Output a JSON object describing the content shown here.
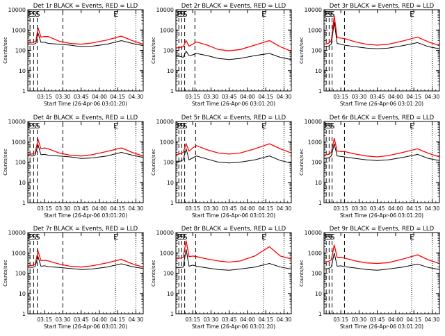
{
  "figure": {
    "xlabel_template": "Start Time (26-Apr-06 03:01:20)",
    "title_suffix": "BLACK = Events, RED = LLD",
    "ylabel": "Counts/sec"
  },
  "colors": {
    "events": "#000000",
    "lld": "#ff0000",
    "axes": "#000000",
    "background": "#ffffff"
  },
  "chart_data": [
    {
      "type": "line",
      "title": "Det 1r BLACK = Events, RED = LLD",
      "detector": "Det 1r",
      "xlabel": "Start Time (26-Apr-06 03:01:20)",
      "ylabel": "Counts/sec",
      "xlim": [
        3.02,
        4.6
      ],
      "ylim": [
        1,
        10000
      ],
      "yscale": "log",
      "xticks": [
        "03:15",
        "03:30",
        "03:45",
        "04:00",
        "04:15",
        "04:30"
      ],
      "yticks": [
        "1",
        "10",
        "100",
        "1000",
        "10000"
      ],
      "markers": [
        "E",
        "S",
        "S",
        "E"
      ],
      "series": [
        {
          "name": "LLD",
          "color": "red",
          "x": [
            3.02,
            3.08,
            3.1,
            3.13,
            3.16,
            3.2,
            3.25,
            3.3,
            3.45,
            3.6,
            3.75,
            3.9,
            4.1,
            4.3,
            4.45,
            4.6
          ],
          "values": [
            240,
            250,
            260,
            280,
            1300,
            450,
            480,
            480,
            280,
            220,
            200,
            230,
            320,
            500,
            300,
            200
          ]
        },
        {
          "name": "Events",
          "color": "black",
          "x": [
            3.02,
            3.08,
            3.1,
            3.13,
            3.16,
            3.2,
            3.25,
            3.3,
            3.45,
            3.6,
            3.75,
            3.9,
            4.1,
            4.3,
            4.45,
            4.6
          ],
          "values": [
            210,
            205,
            200,
            220,
            700,
            250,
            250,
            220,
            200,
            180,
            150,
            160,
            200,
            300,
            220,
            170
          ]
        }
      ],
      "dashed_lines_x": [
        3.05,
        3.1,
        3.15,
        3.5
      ],
      "dotted_lines_x": [
        4.22,
        4.5
      ]
    },
    {
      "type": "line",
      "title": "Det 2r BLACK = Events, RED = LLD",
      "detector": "Det 2r",
      "xlabel": "Start Time (26-Apr-06 03:01:20)",
      "ylabel": "Counts/sec",
      "xlim": [
        3.02,
        4.6
      ],
      "ylim": [
        1,
        10000
      ],
      "yscale": "log",
      "xticks": [
        "03:15",
        "03:30",
        "03:45",
        "04:00",
        "04:15",
        "04:30"
      ],
      "yticks": [
        "1",
        "10",
        "100",
        "1000",
        "10000"
      ],
      "markers": [
        "E",
        "S",
        "S",
        "E"
      ],
      "series": [
        {
          "name": "LLD",
          "color": "red",
          "x": [
            3.02,
            3.08,
            3.12,
            3.16,
            3.2,
            3.25,
            3.3,
            3.45,
            3.6,
            3.75,
            3.9,
            4.1,
            4.3,
            4.45,
            4.6
          ],
          "values": [
            130,
            140,
            150,
            300,
            160,
            200,
            260,
            180,
            110,
            95,
            110,
            180,
            300,
            150,
            90
          ]
        },
        {
          "name": "Events",
          "color": "black",
          "x": [
            3.02,
            3.08,
            3.12,
            3.16,
            3.2,
            3.25,
            3.3,
            3.45,
            3.6,
            3.75,
            3.9,
            4.1,
            4.3,
            4.45,
            4.6
          ],
          "values": [
            55,
            50,
            45,
            90,
            55,
            60,
            70,
            55,
            40,
            35,
            40,
            55,
            70,
            45,
            35
          ]
        }
      ],
      "dashed_lines_x": [
        3.06,
        3.1,
        3.14,
        3.28
      ],
      "dotted_lines_x": [
        4.22,
        4.5
      ]
    },
    {
      "type": "line",
      "title": "Det 3r BLACK = Events, RED = LLD",
      "detector": "Det 3r",
      "xlabel": "Start Time (26-Apr-06 03:01:20)",
      "ylabel": "Counts/sec",
      "xlim": [
        3.02,
        4.6
      ],
      "ylim": [
        1,
        10000
      ],
      "yscale": "log",
      "xticks": [
        "03:15",
        "03:30",
        "03:45",
        "04:00",
        "04:15",
        "04:30"
      ],
      "yticks": [
        "1",
        "10",
        "100",
        "1000",
        "10000"
      ],
      "markers": [
        "E",
        "S",
        "S",
        "E"
      ],
      "series": [
        {
          "name": "LLD",
          "color": "red",
          "x": [
            3.02,
            3.08,
            3.12,
            3.16,
            3.2,
            3.25,
            3.3,
            3.45,
            3.6,
            3.75,
            3.9,
            4.1,
            4.3,
            4.45,
            4.6
          ],
          "values": [
            200,
            220,
            300,
            5000,
            420,
            400,
            380,
            260,
            200,
            180,
            200,
            290,
            450,
            260,
            170
          ]
        },
        {
          "name": "Events",
          "color": "black",
          "x": [
            3.02,
            3.08,
            3.12,
            3.16,
            3.2,
            3.25,
            3.3,
            3.45,
            3.6,
            3.75,
            3.9,
            4.1,
            4.3,
            4.45,
            4.6
          ],
          "values": [
            150,
            160,
            200,
            2500,
            220,
            200,
            180,
            150,
            130,
            120,
            130,
            170,
            240,
            150,
            120
          ]
        }
      ],
      "dashed_lines_x": [
        3.05,
        3.09,
        3.13,
        3.3
      ],
      "dotted_lines_x": [
        4.22,
        4.5
      ]
    },
    {
      "type": "line",
      "title": "Det 4r BLACK = Events, RED = LLD",
      "detector": "Det 4r",
      "xlabel": "Start Time (26-Apr-06 03:01:20)",
      "ylabel": "Counts/sec",
      "xlim": [
        3.02,
        4.6
      ],
      "ylim": [
        1,
        10000
      ],
      "yscale": "log",
      "xticks": [
        "03:15",
        "03:30",
        "03:45",
        "04:00",
        "04:15",
        "04:30"
      ],
      "yticks": [
        "1",
        "10",
        "100",
        "1000",
        "10000"
      ],
      "markers": [
        "E",
        "S",
        "S",
        "E"
      ],
      "series": [
        {
          "name": "LLD",
          "color": "red",
          "x": [
            3.02,
            3.08,
            3.12,
            3.16,
            3.2,
            3.25,
            3.3,
            3.45,
            3.6,
            3.75,
            3.9,
            4.1,
            4.3,
            4.45,
            4.6
          ],
          "values": [
            240,
            250,
            280,
            1300,
            450,
            500,
            450,
            280,
            220,
            200,
            230,
            330,
            500,
            300,
            200
          ]
        },
        {
          "name": "Events",
          "color": "black",
          "x": [
            3.02,
            3.08,
            3.12,
            3.16,
            3.2,
            3.25,
            3.3,
            3.45,
            3.6,
            3.75,
            3.9,
            4.1,
            4.3,
            4.45,
            4.6
          ],
          "values": [
            210,
            200,
            220,
            700,
            230,
            240,
            220,
            200,
            180,
            150,
            160,
            200,
            300,
            220,
            170
          ]
        }
      ],
      "dashed_lines_x": [
        3.05,
        3.1,
        3.15,
        3.5
      ],
      "dotted_lines_x": [
        4.22,
        4.5
      ]
    },
    {
      "type": "line",
      "title": "Det 5r BLACK = Events, RED = LLD",
      "detector": "Det 5r",
      "xlabel": "Start Time (26-Apr-06 03:01:20)",
      "ylabel": "Counts/sec",
      "xlim": [
        3.02,
        4.6
      ],
      "ylim": [
        1,
        10000
      ],
      "yscale": "log",
      "xticks": [
        "03:15",
        "03:30",
        "03:45",
        "04:00",
        "04:15",
        "04:30"
      ],
      "yticks": [
        "1",
        "10",
        "100",
        "1000",
        "10000"
      ],
      "markers": [
        "E",
        "S",
        "S",
        "E"
      ],
      "series": [
        {
          "name": "LLD",
          "color": "red",
          "x": [
            3.02,
            3.08,
            3.12,
            3.16,
            3.2,
            3.25,
            3.3,
            3.45,
            3.6,
            3.75,
            3.9,
            4.1,
            4.3,
            4.45,
            4.6
          ],
          "values": [
            230,
            260,
            300,
            800,
            350,
            500,
            650,
            400,
            280,
            250,
            280,
            450,
            800,
            450,
            280
          ]
        },
        {
          "name": "Events",
          "color": "black",
          "x": [
            3.02,
            3.08,
            3.12,
            3.16,
            3.2,
            3.25,
            3.3,
            3.45,
            3.6,
            3.75,
            3.9,
            4.1,
            4.3,
            4.45,
            4.6
          ],
          "values": [
            110,
            110,
            130,
            450,
            130,
            160,
            200,
            140,
            100,
            90,
            100,
            130,
            200,
            120,
            90
          ]
        }
      ],
      "dashed_lines_x": [
        3.06,
        3.1,
        3.14,
        3.29
      ],
      "dotted_lines_x": [
        4.22,
        4.5
      ]
    },
    {
      "type": "line",
      "title": "Det 6r BLACK = Events, RED = LLD",
      "detector": "Det 6r",
      "xlabel": "Start Time (26-Apr-06 03:01:20)",
      "ylabel": "Counts/sec",
      "xlim": [
        3.02,
        4.6
      ],
      "ylim": [
        1,
        10000
      ],
      "yscale": "log",
      "xticks": [
        "03:15",
        "03:30",
        "03:45",
        "04:00",
        "04:15",
        "04:30"
      ],
      "yticks": [
        "1",
        "10",
        "100",
        "1000",
        "10000"
      ],
      "markers": [
        "E",
        "S",
        "S",
        "E"
      ],
      "series": [
        {
          "name": "LLD",
          "color": "red",
          "x": [
            3.02,
            3.08,
            3.12,
            3.16,
            3.2,
            3.25,
            3.3,
            3.45,
            3.6,
            3.75,
            3.9,
            4.1,
            4.3,
            4.45,
            4.6
          ],
          "values": [
            220,
            240,
            300,
            1500,
            350,
            330,
            330,
            250,
            200,
            180,
            210,
            300,
            450,
            270,
            180
          ]
        },
        {
          "name": "Events",
          "color": "black",
          "x": [
            3.02,
            3.08,
            3.12,
            3.16,
            3.2,
            3.25,
            3.3,
            3.45,
            3.6,
            3.75,
            3.9,
            4.1,
            4.3,
            4.45,
            4.6
          ],
          "values": [
            150,
            160,
            200,
            800,
            200,
            190,
            180,
            150,
            130,
            120,
            130,
            170,
            240,
            150,
            120
          ]
        }
      ],
      "dashed_lines_x": [
        3.05,
        3.09,
        3.13,
        3.3
      ],
      "dotted_lines_x": [
        4.22,
        4.5
      ]
    },
    {
      "type": "line",
      "title": "Det 7r BLACK = Events, RED = LLD",
      "detector": "Det 7r",
      "xlabel": "Start Time (26-Apr-06 03:01:20)",
      "ylabel": "Counts/sec",
      "xlim": [
        3.02,
        4.6
      ],
      "ylim": [
        1,
        10000
      ],
      "yscale": "log",
      "xticks": [
        "03:15",
        "03:30",
        "03:45",
        "04:00",
        "04:15",
        "04:30"
      ],
      "yticks": [
        "1",
        "10",
        "100",
        "1000",
        "10000"
      ],
      "markers": [
        "E",
        "S",
        "S",
        "E"
      ],
      "series": [
        {
          "name": "LLD",
          "color": "red",
          "x": [
            3.02,
            3.08,
            3.12,
            3.16,
            3.2,
            3.25,
            3.3,
            3.45,
            3.6,
            3.75,
            3.9,
            4.1,
            4.3,
            4.45,
            4.6
          ],
          "values": [
            230,
            240,
            280,
            1200,
            420,
            430,
            400,
            280,
            220,
            200,
            230,
            320,
            480,
            290,
            200
          ]
        },
        {
          "name": "Events",
          "color": "black",
          "x": [
            3.02,
            3.08,
            3.12,
            3.16,
            3.2,
            3.25,
            3.3,
            3.45,
            3.6,
            3.75,
            3.9,
            4.1,
            4.3,
            4.45,
            4.6
          ],
          "values": [
            200,
            190,
            210,
            650,
            220,
            230,
            210,
            190,
            170,
            150,
            160,
            200,
            290,
            210,
            170
          ]
        }
      ],
      "dashed_lines_x": [
        3.05,
        3.1,
        3.15,
        3.5
      ],
      "dotted_lines_x": [
        4.22,
        4.5
      ]
    },
    {
      "type": "line",
      "title": "Det 8r BLACK = Events, RED = LLD",
      "detector": "Det 8r",
      "xlabel": "Start Time (26-Apr-06 03:01:20)",
      "ylabel": "Counts/sec",
      "xlim": [
        3.02,
        4.6
      ],
      "ylim": [
        1,
        10000
      ],
      "yscale": "log",
      "xticks": [
        "03:15",
        "03:30",
        "03:45",
        "04:00",
        "04:15",
        "04:30"
      ],
      "yticks": [
        "1",
        "10",
        "100",
        "1000",
        "10000"
      ],
      "markers": [
        "E",
        "S",
        "S",
        "E"
      ],
      "series": [
        {
          "name": "LLD",
          "color": "red",
          "x": [
            3.02,
            3.08,
            3.12,
            3.16,
            3.2,
            3.25,
            3.3,
            3.45,
            3.6,
            3.75,
            3.9,
            4.1,
            4.3,
            4.45,
            4.6
          ],
          "values": [
            500,
            550,
            600,
            4000,
            650,
            700,
            650,
            500,
            400,
            350,
            400,
            700,
            2000,
            700,
            500
          ]
        },
        {
          "name": "Events",
          "color": "black",
          "x": [
            3.02,
            3.08,
            3.12,
            3.16,
            3.2,
            3.25,
            3.3,
            3.45,
            3.6,
            3.75,
            3.9,
            4.1,
            4.3,
            4.45,
            4.6
          ],
          "values": [
            180,
            190,
            200,
            1500,
            220,
            250,
            220,
            180,
            150,
            140,
            160,
            200,
            300,
            200,
            160
          ]
        }
      ],
      "dashed_lines_x": [
        3.06,
        3.1,
        3.14,
        3.29
      ],
      "dotted_lines_x": [
        4.22,
        4.5
      ]
    },
    {
      "type": "line",
      "title": "Det 9r BLACK = Events, RED = LLD",
      "detector": "Det 9r",
      "xlabel": "Start Time (26-Apr-06 03:01:20)",
      "ylabel": "Counts/sec",
      "xlim": [
        3.02,
        4.6
      ],
      "ylim": [
        1,
        10000
      ],
      "yscale": "log",
      "xticks": [
        "03:15",
        "03:30",
        "03:45",
        "04:00",
        "04:15",
        "04:30"
      ],
      "yticks": [
        "1",
        "10",
        "100",
        "1000",
        "10000"
      ],
      "markers": [
        "E",
        "S",
        "S",
        "E"
      ],
      "series": [
        {
          "name": "LLD",
          "color": "red",
          "x": [
            3.02,
            3.08,
            3.12,
            3.16,
            3.2,
            3.25,
            3.3,
            3.45,
            3.6,
            3.75,
            3.9,
            4.1,
            4.3,
            4.45,
            4.6
          ],
          "values": [
            350,
            380,
            450,
            2500,
            600,
            600,
            550,
            400,
            320,
            300,
            330,
            500,
            800,
            450,
            300
          ]
        },
        {
          "name": "Events",
          "color": "black",
          "x": [
            3.02,
            3.08,
            3.12,
            3.16,
            3.2,
            3.25,
            3.3,
            3.45,
            3.6,
            3.75,
            3.9,
            4.1,
            4.3,
            4.45,
            4.6
          ],
          "values": [
            160,
            170,
            200,
            1000,
            220,
            230,
            210,
            180,
            150,
            140,
            160,
            200,
            280,
            190,
            150
          ]
        }
      ],
      "dashed_lines_x": [
        3.05,
        3.09,
        3.13,
        3.3
      ],
      "dotted_lines_x": [
        4.22,
        4.5
      ]
    }
  ]
}
